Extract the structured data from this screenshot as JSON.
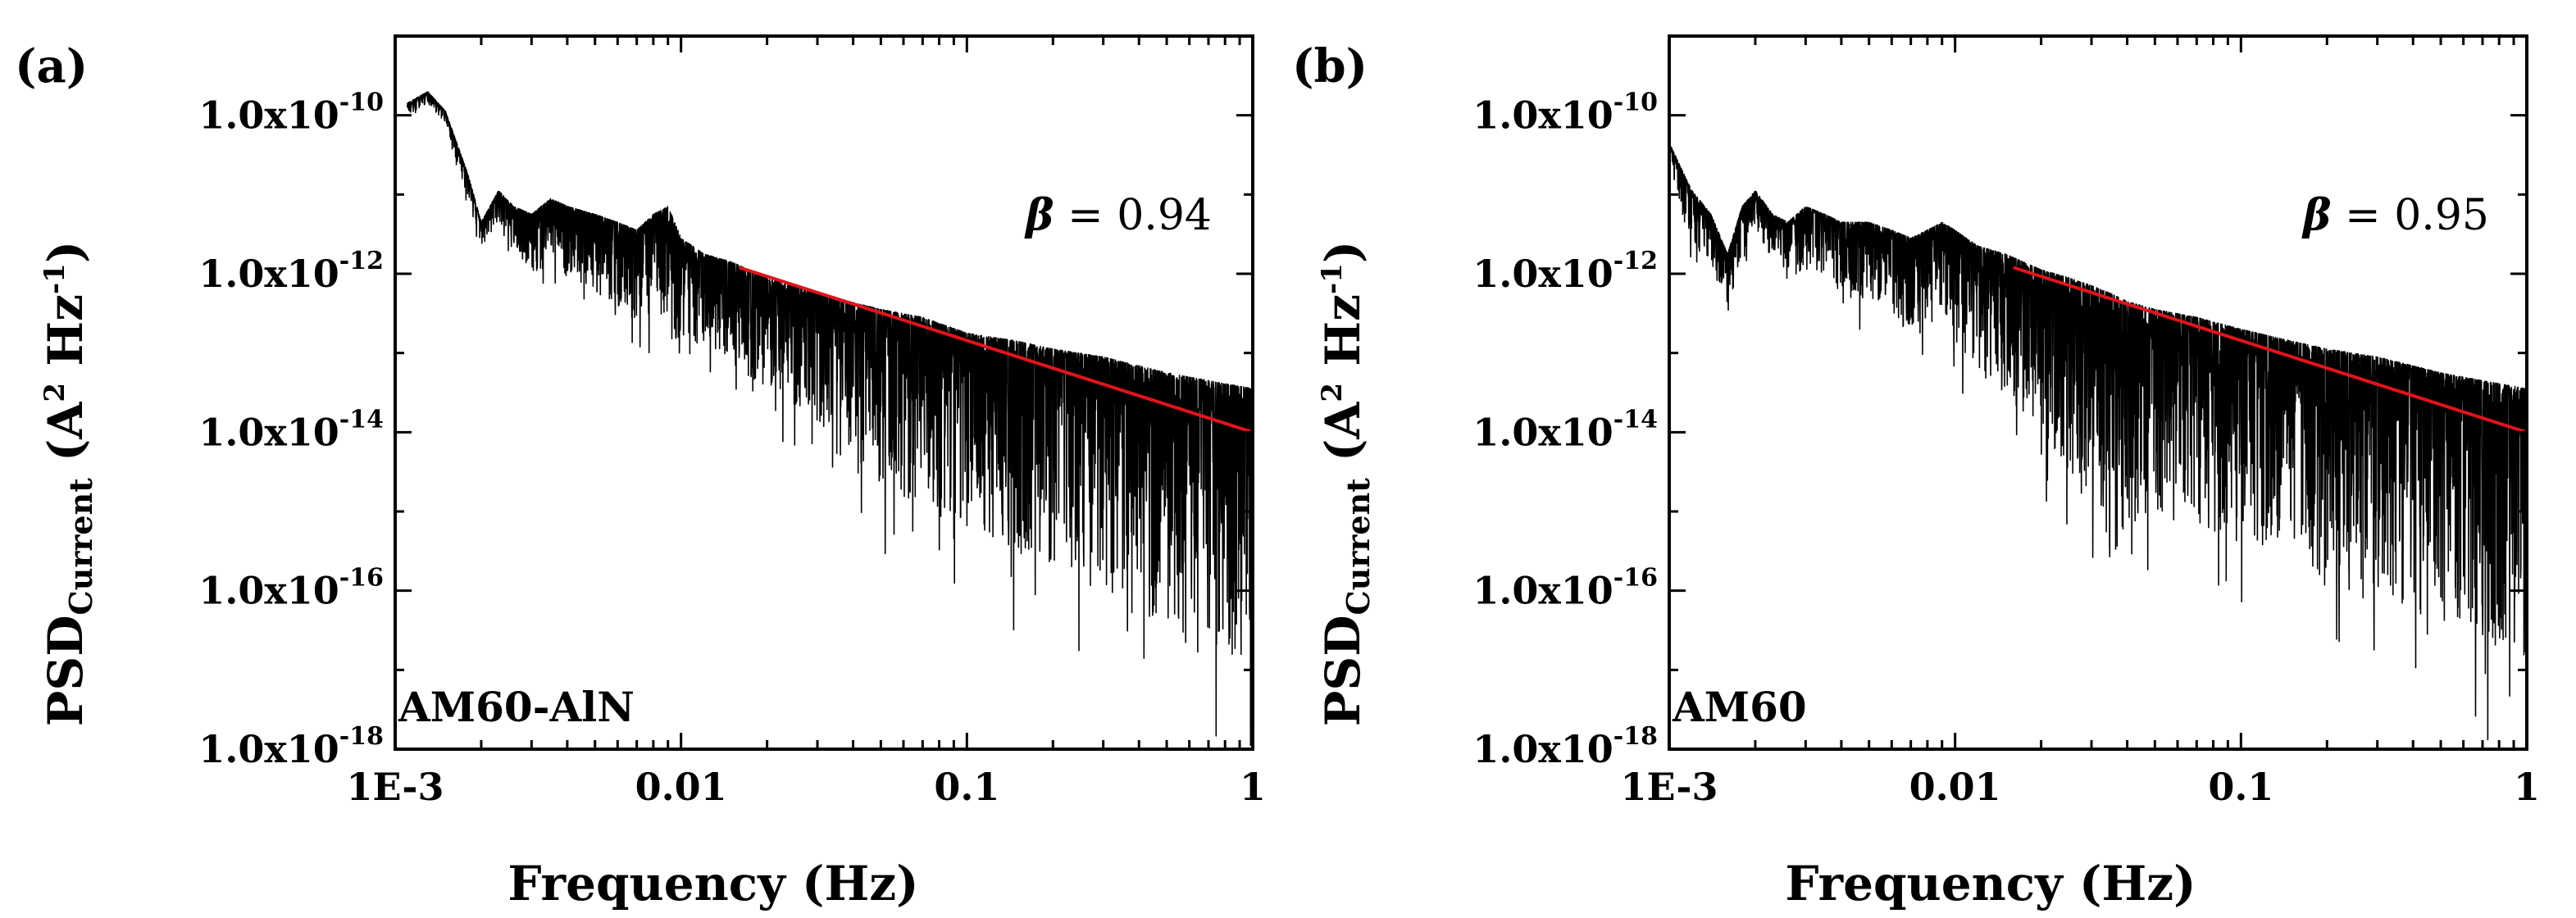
{
  "chart_data": [
    {
      "type": "line",
      "panel_label": "(a)",
      "sample_label": "AM60-AlN",
      "xlabel": "Frequency (Hz)",
      "ylabel": {
        "main": "PSD",
        "sub": "Current",
        "units_open": " (A",
        "units_sup1": "2",
        "units_mid": " Hz",
        "units_sup2": "-1",
        "units_close": ")"
      },
      "x_scale": "log",
      "y_scale": "log",
      "xlim": [
        0.001,
        1
      ],
      "ylim": [
        1e-18,
        1e-09
      ],
      "x_ticks": [
        {
          "value": 0.001,
          "label": "1E-3"
        },
        {
          "value": 0.01,
          "label": "0.01"
        },
        {
          "value": 0.1,
          "label": "0.1"
        },
        {
          "value": 1,
          "label": "1"
        }
      ],
      "y_ticks": [
        {
          "value": 1e-10,
          "mantissa": "1.0x10",
          "exponent": "-10"
        },
        {
          "value": 1e-12,
          "mantissa": "1.0x10",
          "exponent": "-12"
        },
        {
          "value": 1e-14,
          "mantissa": "1.0x10",
          "exponent": "-14"
        },
        {
          "value": 1e-16,
          "mantissa": "1.0x10",
          "exponent": "-16"
        },
        {
          "value": 1e-18,
          "mantissa": "1.0x10",
          "exponent": "-18"
        }
      ],
      "series": [
        {
          "name": "PSD spectrum",
          "color": "#000000",
          "envelope_x": [
            0.0011,
            0.0013,
            0.0015,
            0.0018,
            0.002,
            0.0023,
            0.0026,
            0.003,
            0.0035,
            0.004,
            0.005,
            0.006,
            0.007,
            0.008,
            0.009,
            0.0095,
            0.01,
            0.012,
            0.015,
            0.02,
            0.03,
            0.05,
            0.07,
            0.1,
            0.15,
            0.2,
            0.3,
            0.5,
            0.7,
            1.0
          ],
          "envelope_y_log10": [
            -10.1,
            -9.95,
            -10.2,
            -11.0,
            -11.6,
            -11.2,
            -11.4,
            -11.5,
            -11.3,
            -11.4,
            -11.5,
            -11.6,
            -11.7,
            -11.5,
            -11.4,
            -11.6,
            -11.8,
            -12.0,
            -12.1,
            -12.3,
            -12.5,
            -12.7,
            -12.8,
            -13.0,
            -13.1,
            -13.2,
            -13.3,
            -13.5,
            -13.6,
            -13.7
          ],
          "envelope_spread": [
            0.15,
            0.15,
            0.15,
            0.3,
            0.4,
            0.4,
            0.5,
            0.8,
            0.8,
            0.9,
            1.0,
            1.1,
            1.2,
            1.3,
            1.5,
            2.0,
            1.2,
            1.2,
            1.3,
            1.4,
            1.6,
            2.2,
            2.4,
            2.5,
            2.7,
            2.8,
            3.0,
            3.2,
            3.3,
            3.5
          ]
        },
        {
          "name": "power-law fit",
          "color": "#e0141c",
          "x": [
            0.016,
            1.0
          ],
          "y": [
            1.2e-12,
            1e-14
          ]
        }
      ],
      "annotation": {
        "symbol": "β",
        "text": " = 0.94",
        "beta": 0.94
      }
    },
    {
      "type": "line",
      "panel_label": "(b)",
      "sample_label": "AM60",
      "xlabel": "Frequency (Hz)",
      "ylabel": {
        "main": "PSD",
        "sub": "Current",
        "units_open": " (A",
        "units_sup1": "2",
        "units_mid": " Hz",
        "units_sup2": "-1",
        "units_close": ")"
      },
      "x_scale": "log",
      "y_scale": "log",
      "xlim": [
        0.001,
        1
      ],
      "ylim": [
        1e-18,
        1e-09
      ],
      "x_ticks": [
        {
          "value": 0.001,
          "label": "1E-3"
        },
        {
          "value": 0.01,
          "label": "0.01"
        },
        {
          "value": 0.1,
          "label": "0.1"
        },
        {
          "value": 1,
          "label": "1"
        }
      ],
      "y_ticks": [
        {
          "value": 1e-10,
          "mantissa": "1.0x10",
          "exponent": "-10"
        },
        {
          "value": 1e-12,
          "mantissa": "1.0x10",
          "exponent": "-12"
        },
        {
          "value": 1e-14,
          "mantissa": "1.0x10",
          "exponent": "-14"
        },
        {
          "value": 1e-16,
          "mantissa": "1.0x10",
          "exponent": "-16"
        },
        {
          "value": 1e-18,
          "mantissa": "1.0x10",
          "exponent": "-18"
        }
      ],
      "series": [
        {
          "name": "PSD spectrum",
          "color": "#000000",
          "envelope_x": [
            0.001,
            0.0012,
            0.0014,
            0.0016,
            0.0018,
            0.002,
            0.0023,
            0.0026,
            0.003,
            0.0035,
            0.004,
            0.005,
            0.006,
            0.007,
            0.008,
            0.009,
            0.01,
            0.012,
            0.015,
            0.02,
            0.025,
            0.03,
            0.035,
            0.04,
            0.05,
            0.07,
            0.1,
            0.15,
            0.2,
            0.3,
            0.5,
            0.7,
            1.0
          ],
          "envelope_y_log10": [
            -10.6,
            -11.2,
            -11.5,
            -12.0,
            -11.4,
            -11.2,
            -11.5,
            -11.6,
            -11.4,
            -11.5,
            -11.6,
            -11.6,
            -11.7,
            -11.8,
            -11.7,
            -11.6,
            -11.7,
            -11.9,
            -12.0,
            -12.2,
            -12.3,
            -12.4,
            -12.5,
            -12.6,
            -12.7,
            -12.8,
            -12.95,
            -13.1,
            -13.2,
            -13.3,
            -13.5,
            -13.6,
            -13.7
          ],
          "envelope_spread": [
            0.2,
            0.8,
            0.6,
            0.8,
            0.6,
            0.5,
            0.6,
            0.7,
            0.8,
            0.8,
            0.9,
            1.0,
            1.1,
            1.2,
            1.2,
            1.3,
            1.4,
            1.6,
            1.8,
            2.0,
            2.5,
            2.6,
            3.5,
            2.8,
            2.6,
            2.6,
            2.7,
            2.8,
            3.0,
            3.1,
            3.2,
            3.3,
            3.5
          ]
        },
        {
          "name": "power-law fit",
          "color": "#e0141c",
          "x": [
            0.016,
            1.0
          ],
          "y": [
            1.2e-12,
            1e-14
          ]
        }
      ],
      "annotation": {
        "symbol": "β",
        "text": " = 0.95",
        "beta": 0.95
      }
    }
  ]
}
